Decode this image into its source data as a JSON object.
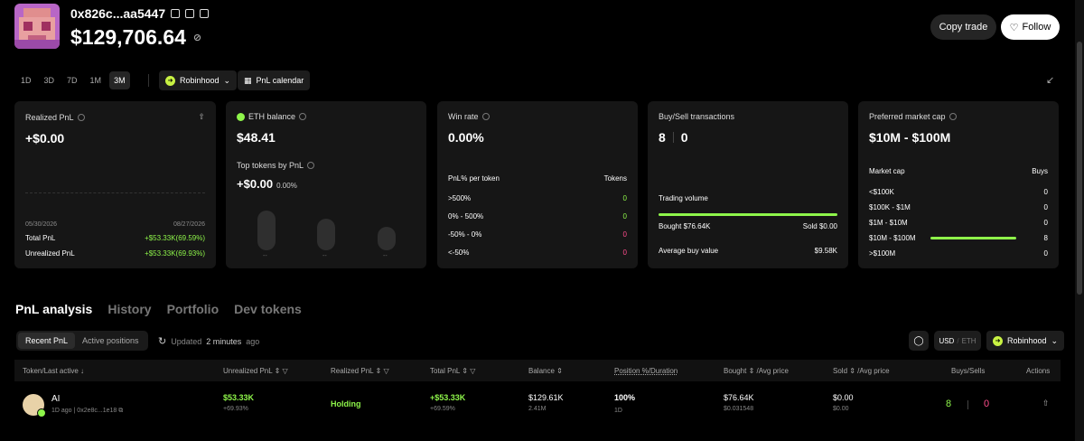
{
  "header": {
    "address": "0x826c...aa5447",
    "balance": "$129,706.64",
    "copy_trade_label": "Copy trade",
    "follow_label": "Follow"
  },
  "filters": {
    "ranges": [
      "1D",
      "3D",
      "7D",
      "1M",
      "3M"
    ],
    "active_range": "3M",
    "platform": "Robinhood",
    "calendar_label": "PnL calendar"
  },
  "cards": {
    "realized": {
      "title": "Realized PnL",
      "value": "+$0.00",
      "date_start": "05/30/2026",
      "date_end": "08/27/2026",
      "total_label": "Total PnL",
      "total_value": "+$53.33K(69.59%)",
      "unrealized_label": "Unrealized PnL",
      "unrealized_value": "+$53.33K(69.93%)"
    },
    "eth": {
      "title": "ETH balance",
      "value": "$48.41",
      "top_tokens_title": "Top tokens by PnL",
      "top_value": "+$0.00",
      "top_pct": "0.00%",
      "token_labels": [
        "--",
        "--",
        "--"
      ],
      "token_levels": [
        0.85,
        0.68,
        0.5
      ]
    },
    "winrate": {
      "title": "Win rate",
      "value": "0.00%",
      "col_label": "PnL% per token",
      "col_tokens": "Tokens",
      "rows": [
        {
          "label": ">500%",
          "count": "0",
          "color": "#8ef54a"
        },
        {
          "label": "0% - 500%",
          "count": "0",
          "color": "#8ef54a"
        },
        {
          "label": "-50% - 0%",
          "count": "0",
          "color": "#ff4d8d"
        },
        {
          "label": "<-50%",
          "count": "0",
          "color": "#ff4d8d"
        }
      ]
    },
    "buysell": {
      "title": "Buy/Sell transactions",
      "buys": "8",
      "sells": "0",
      "volume_label": "Trading volume",
      "bought": "Bought $76.64K",
      "sold": "Sold $0.00",
      "avg_label": "Average buy value",
      "avg_value": "$9.58K"
    },
    "mcap": {
      "title": "Preferred market cap",
      "value": "$10M - $100M",
      "col_label": "Market cap",
      "col_buys": "Buys",
      "rows": [
        {
          "label": "<$100K",
          "count": "0"
        },
        {
          "label": "$100K - $1M",
          "count": "0"
        },
        {
          "label": "$1M - $10M",
          "count": "0"
        },
        {
          "label": "$10M - $100M",
          "count": "8"
        },
        {
          "label": ">$100M",
          "count": "0"
        }
      ]
    }
  },
  "tabs": [
    "PnL analysis",
    "History",
    "Portfolio",
    "Dev tokens"
  ],
  "subtabs": [
    "Recent PnL",
    "Active positions"
  ],
  "updated": {
    "prefix": "Updated",
    "value": "2 minutes",
    "suffix": "ago"
  },
  "currency": {
    "usd": "USD",
    "eth": "ETH"
  },
  "table": {
    "columns": [
      "Token/Last active",
      "Unrealized PnL",
      "Realized PnL",
      "Total PnL",
      "Balance",
      "Position %/Duration",
      "Bought",
      "/Avg price",
      "Sold",
      "/Avg price",
      "Buys/Sells",
      "Actions"
    ],
    "row": {
      "token": "AI",
      "last_active": "1D ago",
      "contract": "0x2e8c...1e18",
      "unrealized": "$53.33K",
      "unrealized_pct": "+69.93%",
      "realized": "Holding",
      "total": "+$53.33K",
      "total_pct": "+69.59%",
      "balance": "$129.61K",
      "balance_sub": "2.41M",
      "position": "100%",
      "duration": "1D",
      "bought": "$76.64K",
      "bought_avg": "$0.031548",
      "sold": "$0.00",
      "sold_avg": "$0.00",
      "buys": "8",
      "sells": "0"
    }
  }
}
